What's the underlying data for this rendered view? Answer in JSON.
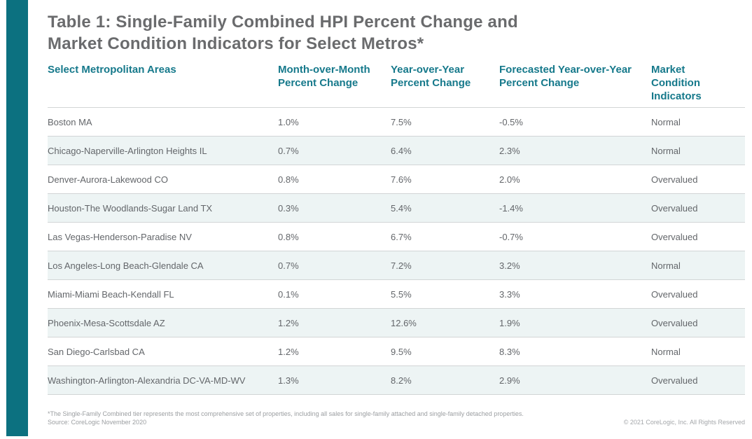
{
  "page": {
    "title_line1": "Table 1: Single-Family Combined HPI Percent Change and",
    "title_line2": "Market Condition Indicators for Select Metros*",
    "footnote": "*The Single-Family Combined tier represents the most comprehensive set of properties, including all sales for single-family attached and single-family detached properties.",
    "source": "Source: CoreLogic November 2020",
    "copyright": "© 2021 CoreLogic, Inc. All Rights Reserved"
  },
  "colors": {
    "accent_teal": "#0c7180",
    "header_text_teal": "#16798b",
    "title_gray": "#6a6b6d",
    "body_text_gray": "#63666a",
    "alt_row_bg": "#edf4f4",
    "divider_gray": "#d2d5d6"
  },
  "chart_data": {
    "type": "table",
    "title": "Table 1: Single-Family Combined HPI Percent Change and Market Condition Indicators for Select Metros*",
    "columns": [
      "Select Metropolitan Areas",
      "Month-over-Month Percent Change",
      "Year-over-Year Percent Change",
      "Forecasted Year-over-Year Percent Change",
      "Market Condition Indicators"
    ],
    "rows": [
      {
        "metro": "Boston MA",
        "mom": "1.0%",
        "yoy": "7.5%",
        "forecast": "-0.5%",
        "condition": "Normal"
      },
      {
        "metro": "Chicago-Naperville-Arlington Heights IL",
        "mom": "0.7%",
        "yoy": "6.4%",
        "forecast": "2.3%",
        "condition": "Normal"
      },
      {
        "metro": "Denver-Aurora-Lakewood CO",
        "mom": "0.8%",
        "yoy": "7.6%",
        "forecast": "2.0%",
        "condition": "Overvalued"
      },
      {
        "metro": "Houston-The Woodlands-Sugar Land TX",
        "mom": "0.3%",
        "yoy": "5.4%",
        "forecast": "-1.4%",
        "condition": "Overvalued"
      },
      {
        "metro": "Las Vegas-Henderson-Paradise NV",
        "mom": "0.8%",
        "yoy": "6.7%",
        "forecast": "-0.7%",
        "condition": "Overvalued"
      },
      {
        "metro": "Los Angeles-Long Beach-Glendale CA",
        "mom": "0.7%",
        "yoy": "7.2%",
        "forecast": "3.2%",
        "condition": "Normal"
      },
      {
        "metro": "Miami-Miami Beach-Kendall FL",
        "mom": "0.1%",
        "yoy": "5.5%",
        "forecast": "3.3%",
        "condition": "Overvalued"
      },
      {
        "metro": "Phoenix-Mesa-Scottsdale AZ",
        "mom": "1.2%",
        "yoy": "12.6%",
        "forecast": "1.9%",
        "condition": "Overvalued"
      },
      {
        "metro": "San Diego-Carlsbad CA",
        "mom": "1.2%",
        "yoy": "9.5%",
        "forecast": "8.3%",
        "condition": "Normal"
      },
      {
        "metro": "Washington-Arlington-Alexandria DC-VA-MD-WV",
        "mom": "1.3%",
        "yoy": "8.2%",
        "forecast": "2.9%",
        "condition": "Overvalued"
      }
    ]
  }
}
